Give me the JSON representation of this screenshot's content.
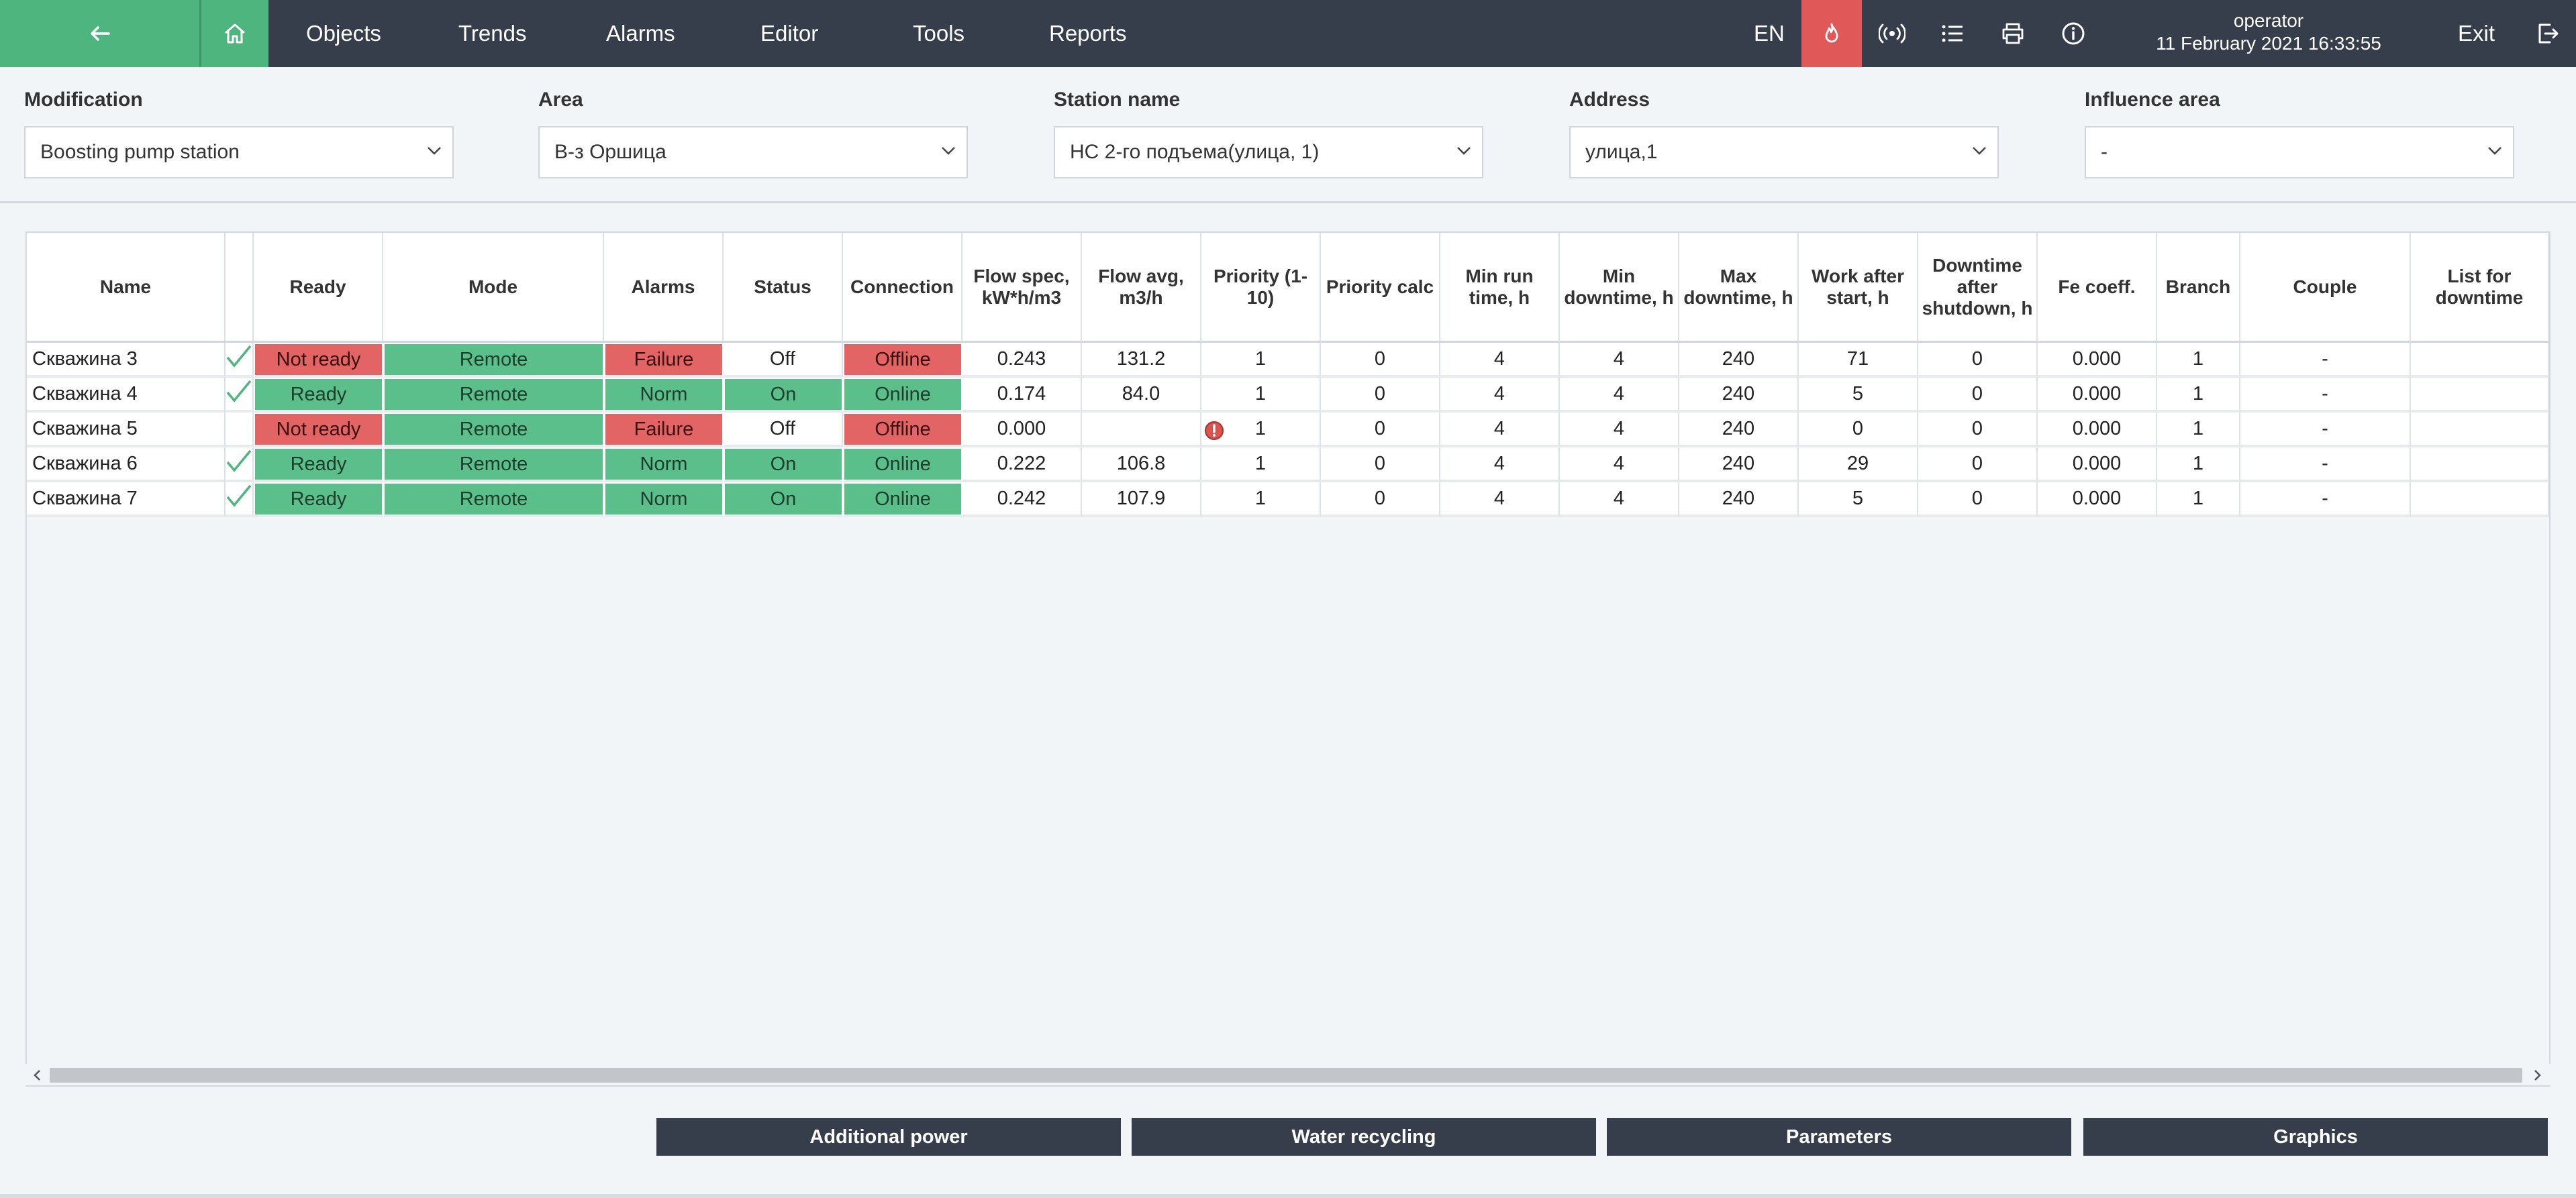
{
  "nav": {
    "items": [
      "Objects",
      "Trends",
      "Alarms",
      "Editor",
      "Tools",
      "Reports"
    ],
    "lang": "EN",
    "user": "operator",
    "datetime": "11 February 2021 16:33:55",
    "exit": "Exit"
  },
  "filters": [
    {
      "label": "Modification",
      "value": "Boosting pump station"
    },
    {
      "label": "Area",
      "value": "В-з Оршица"
    },
    {
      "label": "Station name",
      "value": "НС 2-го подъема(улица, 1)"
    },
    {
      "label": "Address",
      "value": "улица,1"
    },
    {
      "label": "Influence area",
      "value": "-"
    }
  ],
  "table": {
    "columns": [
      "Name",
      "",
      "Ready",
      "Mode",
      "Alarms",
      "Status",
      "Connection",
      "Flow spec, kW*h/m3",
      "Flow avg, m3/h",
      "Priority (1-10)",
      "Priority calc",
      "Min run time, h",
      "Min downtime, h",
      "Max downtime, h",
      "Work after start, h",
      "Downtime after shutdown, h",
      "Fe coeff.",
      "Branch",
      "Couple",
      "List for downtime"
    ],
    "rows": [
      {
        "name": "Скважина 3",
        "checked": true,
        "ready": "Not ready",
        "mode": "Remote",
        "alarms": "Failure",
        "status": "Off",
        "connection": "Offline",
        "flow_spec": "0.243",
        "flow_avg": "131.2",
        "priority": "1",
        "priority_calc": "0",
        "min_run": "4",
        "min_down": "4",
        "max_down": "240",
        "work_after": "71",
        "down_after": "0",
        "fe": "0.000",
        "branch": "1",
        "couple": "-",
        "list": "",
        "warn": false
      },
      {
        "name": "Скважина 4",
        "checked": true,
        "ready": "Ready",
        "mode": "Remote",
        "alarms": "Norm",
        "status": "On",
        "connection": "Online",
        "flow_spec": "0.174",
        "flow_avg": "84.0",
        "priority": "1",
        "priority_calc": "0",
        "min_run": "4",
        "min_down": "4",
        "max_down": "240",
        "work_after": "5",
        "down_after": "0",
        "fe": "0.000",
        "branch": "1",
        "couple": "-",
        "list": "",
        "warn": false
      },
      {
        "name": "Скважина 5",
        "checked": false,
        "ready": "Not ready",
        "mode": "Remote",
        "alarms": "Failure",
        "status": "Off",
        "connection": "Offline",
        "flow_spec": "0.000",
        "flow_avg": "",
        "priority": "1",
        "priority_calc": "0",
        "min_run": "4",
        "min_down": "4",
        "max_down": "240",
        "work_after": "0",
        "down_after": "0",
        "fe": "0.000",
        "branch": "1",
        "couple": "-",
        "list": "",
        "warn": true
      },
      {
        "name": "Скважина 6",
        "checked": true,
        "ready": "Ready",
        "mode": "Remote",
        "alarms": "Norm",
        "status": "On",
        "connection": "Online",
        "flow_spec": "0.222",
        "flow_avg": "106.8",
        "priority": "1",
        "priority_calc": "0",
        "min_run": "4",
        "min_down": "4",
        "max_down": "240",
        "work_after": "29",
        "down_after": "0",
        "fe": "0.000",
        "branch": "1",
        "couple": "-",
        "list": "",
        "warn": false
      },
      {
        "name": "Скважина 7",
        "checked": true,
        "ready": "Ready",
        "mode": "Remote",
        "alarms": "Norm",
        "status": "On",
        "connection": "Online",
        "flow_spec": "0.242",
        "flow_avg": "107.9",
        "priority": "1",
        "priority_calc": "0",
        "min_run": "4",
        "min_down": "4",
        "max_down": "240",
        "work_after": "5",
        "down_after": "0",
        "fe": "0.000",
        "branch": "1",
        "couple": "-",
        "list": "",
        "warn": false
      }
    ]
  },
  "buttons": [
    "Additional power",
    "Water recycling",
    "Parameters",
    "Graphics"
  ],
  "colors": {
    "accent_green": "#4eb57e",
    "ok_green": "#5bbf8b",
    "fail_red": "#e26464",
    "nav_dark": "#363e4b"
  },
  "icons": [
    "arrow-left-icon",
    "home-icon",
    "fire-icon",
    "broadcast-icon",
    "list-icon",
    "print-icon",
    "info-icon",
    "logout-icon",
    "check-icon",
    "warning-icon"
  ]
}
